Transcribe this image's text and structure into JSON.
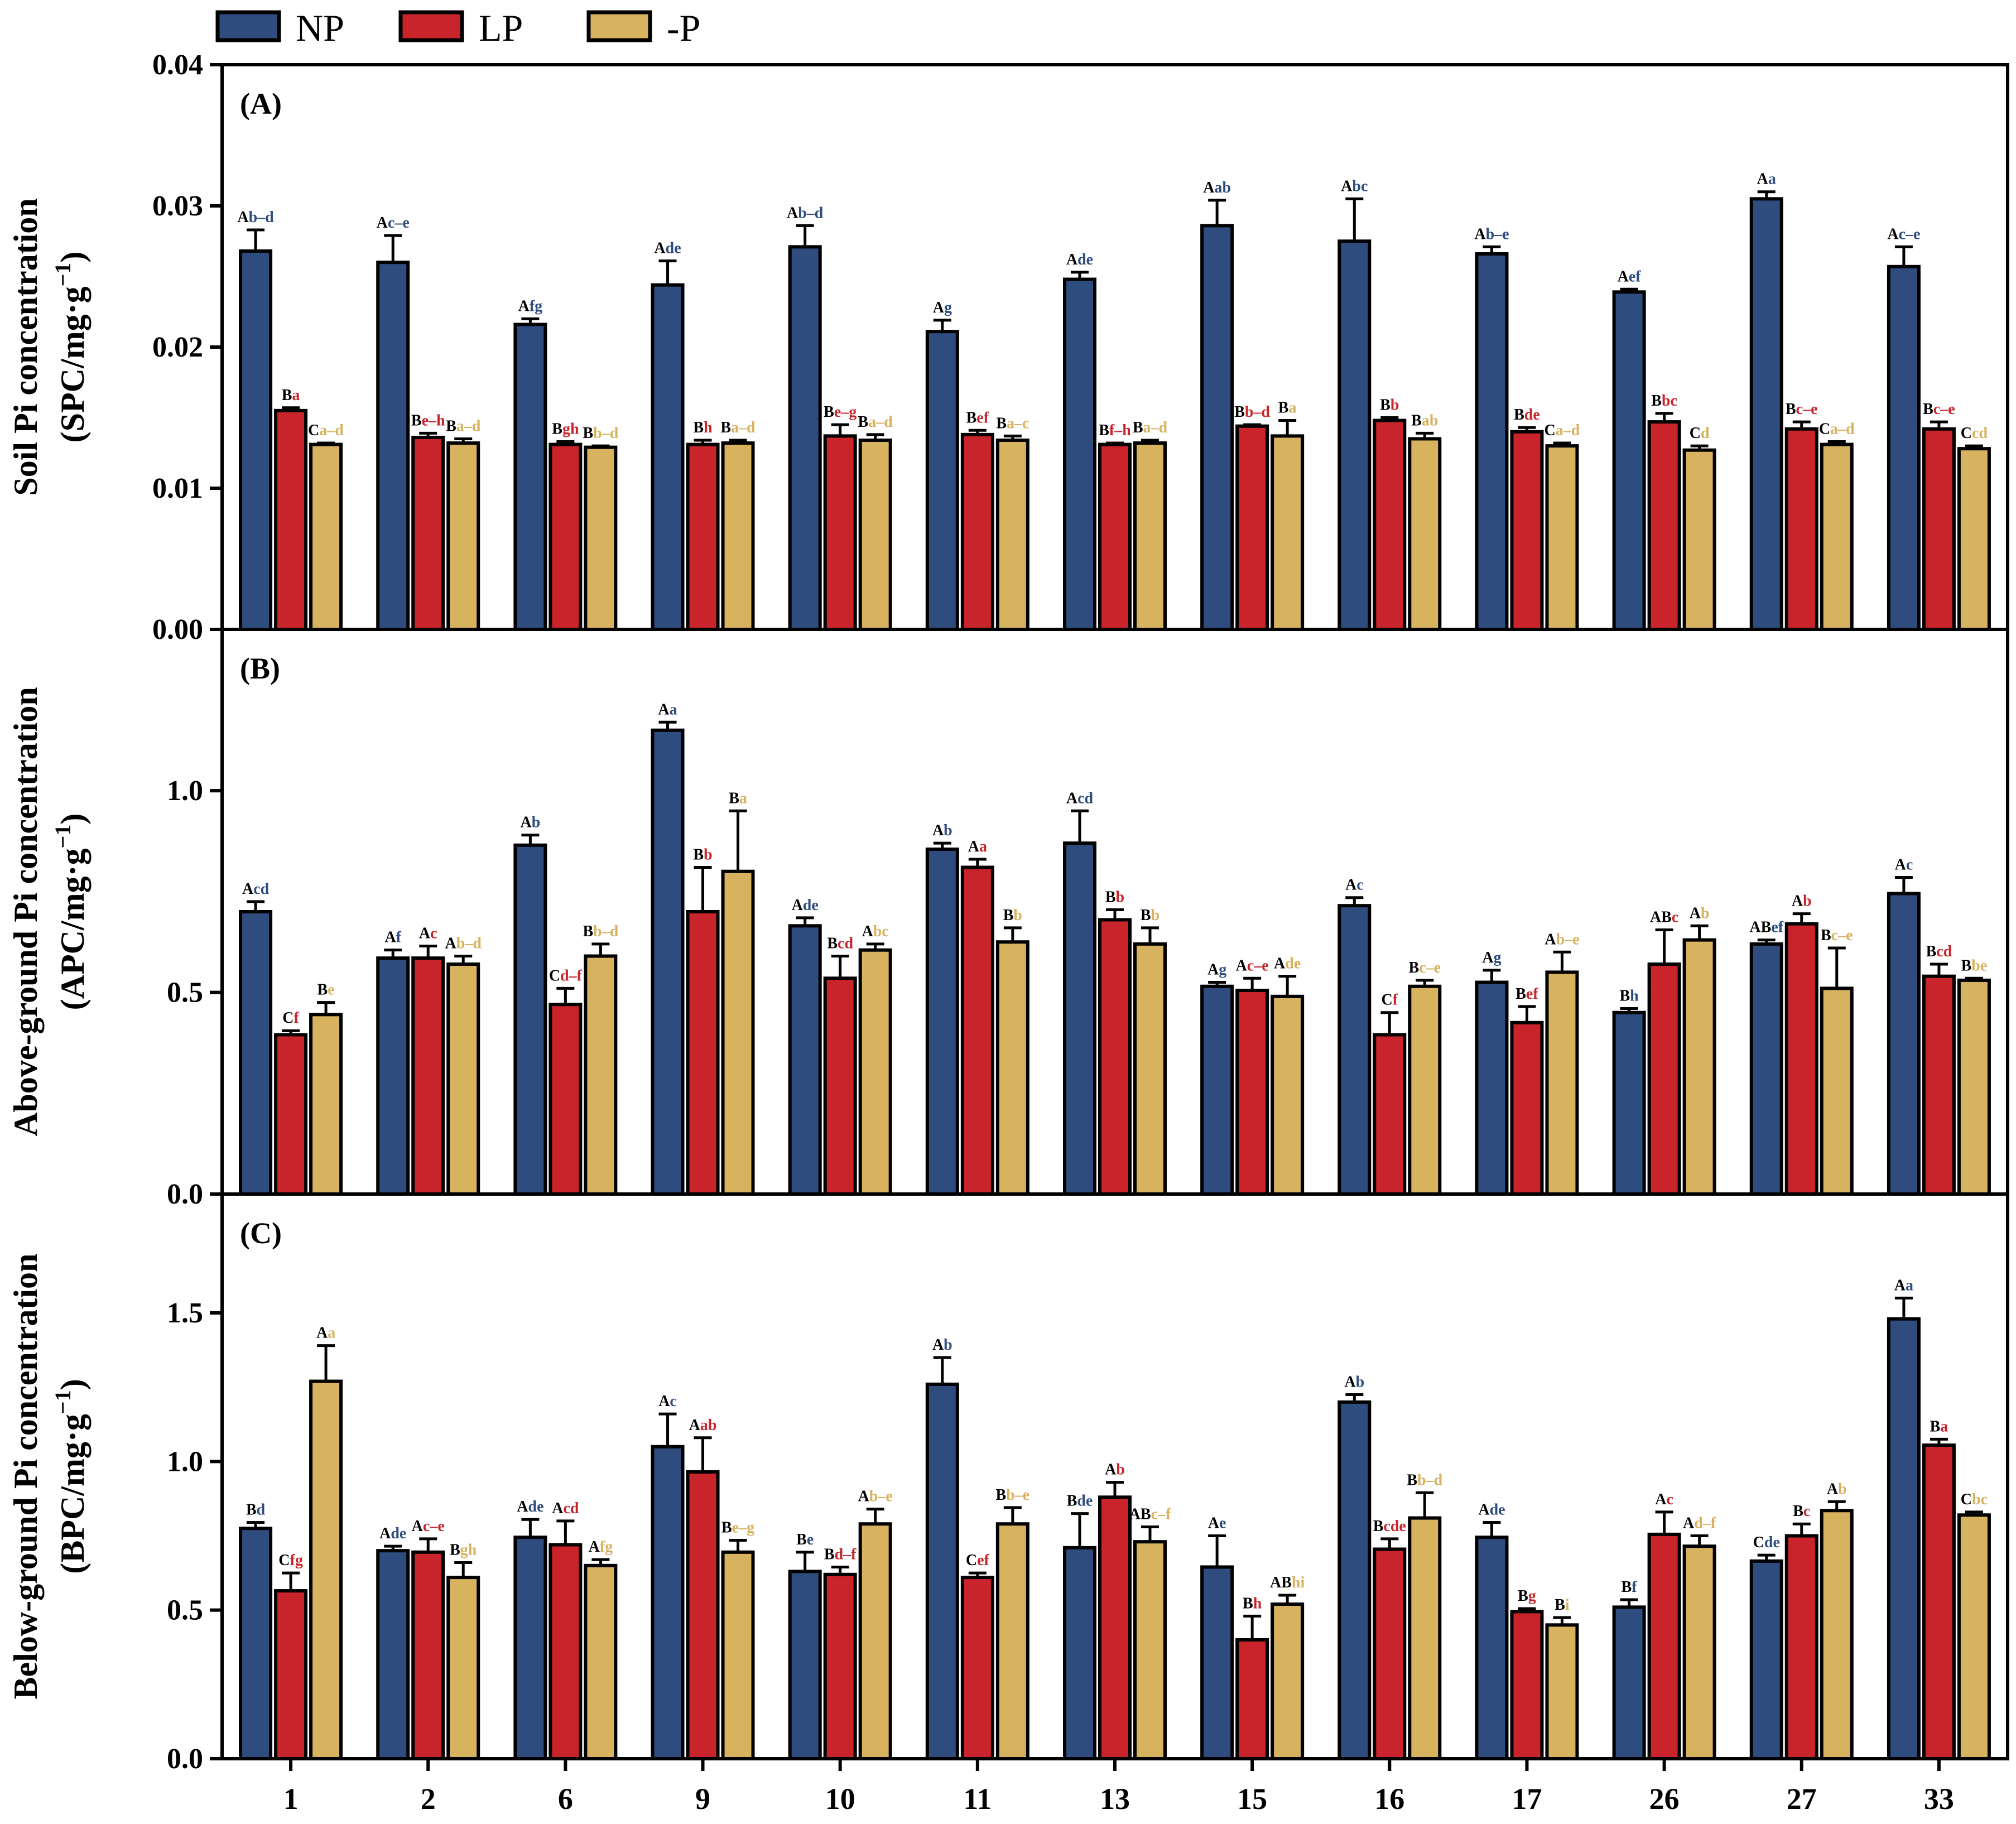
{
  "colors": {
    "NP": "#2f4c7e",
    "LP": "#c9242c",
    "-P": "#d7b25f",
    "axis": "#000000"
  },
  "legend": [
    {
      "key": "NP",
      "label": "NP"
    },
    {
      "key": "LP",
      "label": "LP"
    },
    {
      "key": "-P",
      "label": "-P"
    }
  ],
  "chart_data": {
    "type": "bar",
    "categories": [
      "1",
      "2",
      "6",
      "9",
      "10",
      "11",
      "13",
      "15",
      "16",
      "17",
      "26",
      "27",
      "33"
    ],
    "series_names": [
      "NP",
      "LP",
      "-P"
    ],
    "panels": [
      {
        "label": "(A)",
        "ylabel_line1": "Soil Pi concentration",
        "ylabel_line2": "(SPC/mg·g",
        "ylabel_sup": "−1",
        "ylabel_close": ")",
        "ylim": [
          0,
          0.04
        ],
        "yticks": [
          "0.00",
          "0.01",
          "0.02",
          "0.03",
          "0.04"
        ],
        "series": [
          {
            "name": "NP",
            "values": [
              0.0268,
              0.026,
              0.0216,
              0.0244,
              0.0271,
              0.0211,
              0.0248,
              0.0286,
              0.0275,
              0.0266,
              0.0239,
              0.0305,
              0.0257
            ],
            "errors": [
              0.0015,
              0.0019,
              0.0004,
              0.0017,
              0.0015,
              0.0008,
              0.0005,
              0.0018,
              0.003,
              0.0005,
              0.0002,
              0.0005,
              0.0014
            ],
            "sig_cap": [
              "A",
              "A",
              "A",
              "A",
              "A",
              "A",
              "A",
              "A",
              "A",
              "A",
              "A",
              "A",
              "A"
            ],
            "sig_low": [
              "b–d",
              "c–e",
              "fg",
              "de",
              "b–d",
              "g",
              "de",
              "ab",
              "bc",
              "b–e",
              "ef",
              "a",
              "c–e"
            ]
          },
          {
            "name": "LP",
            "values": [
              0.0155,
              0.0136,
              0.0131,
              0.0131,
              0.0137,
              0.0138,
              0.0131,
              0.0144,
              0.0148,
              0.014,
              0.0147,
              0.0142,
              0.0142
            ],
            "errors": [
              0.0002,
              0.0003,
              0.0002,
              0.0003,
              0.0008,
              0.0003,
              0.0001,
              0.0001,
              0.0002,
              0.0003,
              0.0006,
              0.0005,
              0.0005
            ],
            "sig_cap": [
              "B",
              "B",
              "B",
              "B",
              "B",
              "B",
              "B",
              "B",
              "B",
              "B",
              "B",
              "B",
              "B"
            ],
            "sig_low": [
              "a",
              "e–h",
              "gh",
              "h",
              "e–g",
              "ef",
              "f–h",
              "b–d",
              "b",
              "de",
              "bc",
              "c–e",
              "c–e"
            ]
          },
          {
            "name": "-P",
            "values": [
              0.0131,
              0.0132,
              0.0129,
              0.0132,
              0.0134,
              0.0134,
              0.0132,
              0.0137,
              0.0135,
              0.013,
              0.0127,
              0.0131,
              0.0128
            ],
            "errors": [
              0.0001,
              0.0003,
              0.0001,
              0.0002,
              0.0004,
              0.0003,
              0.0002,
              0.0011,
              0.0004,
              0.0002,
              0.0003,
              0.0002,
              0.0002
            ],
            "sig_cap": [
              "C",
              "B",
              "B",
              "B",
              "B",
              "B",
              "B",
              "B",
              "B",
              "C",
              "C",
              "C",
              "C"
            ],
            "sig_low": [
              "a–d",
              "a–d",
              "b–d",
              "a–d",
              "a–d",
              "a–c",
              "a–d",
              "a",
              "ab",
              "a–d",
              "d",
              "a–d",
              "cd"
            ]
          }
        ]
      },
      {
        "label": "(B)",
        "ylabel_line1": "Above-ground Pi concentration",
        "ylabel_line2": "(APC/mg·g",
        "ylabel_sup": "−1",
        "ylabel_close": ")",
        "ylim": [
          0,
          1.4
        ],
        "yticks": [
          "0.0",
          "0.5",
          "1.0"
        ],
        "series": [
          {
            "name": "NP",
            "values": [
              0.7,
              0.585,
              0.865,
              1.15,
              0.665,
              0.855,
              0.87,
              0.515,
              0.715,
              0.525,
              0.45,
              0.62,
              0.745
            ],
            "errors": [
              0.025,
              0.02,
              0.025,
              0.02,
              0.02,
              0.015,
              0.08,
              0.01,
              0.02,
              0.03,
              0.01,
              0.01,
              0.04
            ],
            "sig_cap": [
              "A",
              "A",
              "A",
              "A",
              "A",
              "A",
              "A",
              "A",
              "A",
              "A",
              "B",
              "AB",
              "A"
            ],
            "sig_low": [
              "cd",
              "f",
              "b",
              "a",
              "de",
              "b",
              "cd",
              "g",
              "c",
              "g",
              "h",
              "ef",
              "c"
            ]
          },
          {
            "name": "LP",
            "values": [
              0.395,
              0.585,
              0.47,
              0.7,
              0.535,
              0.81,
              0.68,
              0.505,
              0.395,
              0.425,
              0.57,
              0.67,
              0.54
            ],
            "errors": [
              0.01,
              0.03,
              0.04,
              0.11,
              0.055,
              0.02,
              0.025,
              0.03,
              0.055,
              0.04,
              0.085,
              0.025,
              0.03
            ],
            "sig_cap": [
              "C",
              "A",
              "C",
              "B",
              "B",
              "A",
              "B",
              "A",
              "C",
              "B",
              "AB",
              "A",
              "B"
            ],
            "sig_low": [
              "f",
              "c",
              "d–f",
              "b",
              "cd",
              "a",
              "b",
              "c–e",
              "f",
              "ef",
              "c",
              "b",
              "cd"
            ]
          },
          {
            "name": "-P",
            "values": [
              0.445,
              0.57,
              0.59,
              0.8,
              0.605,
              0.625,
              0.62,
              0.49,
              0.515,
              0.55,
              0.63,
              0.51,
              0.53
            ],
            "errors": [
              0.03,
              0.02,
              0.03,
              0.15,
              0.015,
              0.035,
              0.04,
              0.05,
              0.015,
              0.05,
              0.035,
              0.1,
              0.005
            ],
            "sig_cap": [
              "B",
              "A",
              "B",
              "B",
              "A",
              "B",
              "B",
              "A",
              "B",
              "A",
              "A",
              "B",
              "B"
            ],
            "sig_low": [
              "e",
              "b–d",
              "b–d",
              "a",
              "bc",
              "b",
              "b",
              "de",
              "c–e",
              "b–e",
              "b",
              "c–e",
              "be"
            ]
          }
        ]
      },
      {
        "label": "(C)",
        "ylabel_line1": "Below-ground Pi concentration",
        "ylabel_line2": "(BPC/mg·g",
        "ylabel_sup": "−1",
        "ylabel_close": ")",
        "ylim": [
          0,
          1.9
        ],
        "yticks": [
          "0.0",
          "0.5",
          "1.0",
          "1.5"
        ],
        "series": [
          {
            "name": "NP",
            "values": [
              0.775,
              0.7,
              0.745,
              1.05,
              0.63,
              1.26,
              0.71,
              0.645,
              1.2,
              0.745,
              0.51,
              0.665,
              1.48
            ],
            "errors": [
              0.02,
              0.015,
              0.06,
              0.11,
              0.065,
              0.09,
              0.115,
              0.105,
              0.025,
              0.05,
              0.025,
              0.02,
              0.07
            ],
            "sig_cap": [
              "B",
              "A",
              "A",
              "A",
              "B",
              "A",
              "B",
              "A",
              "A",
              "A",
              "B",
              "C",
              "A"
            ],
            "sig_low": [
              "d",
              "de",
              "de",
              "c",
              "e",
              "b",
              "de",
              "e",
              "b",
              "de",
              "f",
              "de",
              "a"
            ]
          },
          {
            "name": "LP",
            "values": [
              0.565,
              0.695,
              0.72,
              0.965,
              0.62,
              0.61,
              0.88,
              0.4,
              0.705,
              0.495,
              0.755,
              0.75,
              1.055
            ],
            "errors": [
              0.06,
              0.045,
              0.08,
              0.115,
              0.025,
              0.015,
              0.05,
              0.08,
              0.035,
              0.01,
              0.075,
              0.04,
              0.02
            ],
            "sig_cap": [
              "C",
              "A",
              "A",
              "A",
              "B",
              "C",
              "A",
              "B",
              "B",
              "B",
              "A",
              "B",
              "B"
            ],
            "sig_low": [
              "fg",
              "c–e",
              "cd",
              "ab",
              "d–f",
              "ef",
              "b",
              "h",
              "cde",
              "g",
              "c",
              "c",
              "a"
            ]
          },
          {
            "name": "-P",
            "values": [
              1.27,
              0.61,
              0.65,
              0.695,
              0.79,
              0.79,
              0.73,
              0.52,
              0.81,
              0.45,
              0.715,
              0.835,
              0.82
            ],
            "errors": [
              0.12,
              0.05,
              0.02,
              0.04,
              0.05,
              0.055,
              0.05,
              0.03,
              0.085,
              0.025,
              0.035,
              0.03,
              0.01
            ],
            "sig_cap": [
              "A",
              "B",
              "A",
              "B",
              "A",
              "B",
              "AB",
              "AB",
              "B",
              "B",
              "A",
              "A",
              "C"
            ],
            "sig_low": [
              "a",
              "gh",
              "fg",
              "e–g",
              "b–e",
              "b–e",
              "c–f",
              "hi",
              "b–d",
              "i",
              "d–f",
              "b",
              "bc"
            ]
          }
        ]
      }
    ]
  }
}
